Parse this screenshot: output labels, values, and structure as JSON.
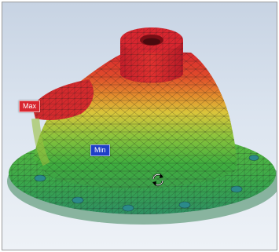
{
  "viewport": {
    "labels": {
      "max": "Max",
      "min": "Min"
    },
    "colors": {
      "background": "#d4deea",
      "max": "#d8262f",
      "min": "#1f3fc7",
      "contour": [
        "#d8262f",
        "#e8562a",
        "#e59a2d",
        "#d9c53a",
        "#8cc43c",
        "#3fae3e",
        "#3da58e"
      ]
    },
    "cursor_icon": "rotate-icon"
  }
}
